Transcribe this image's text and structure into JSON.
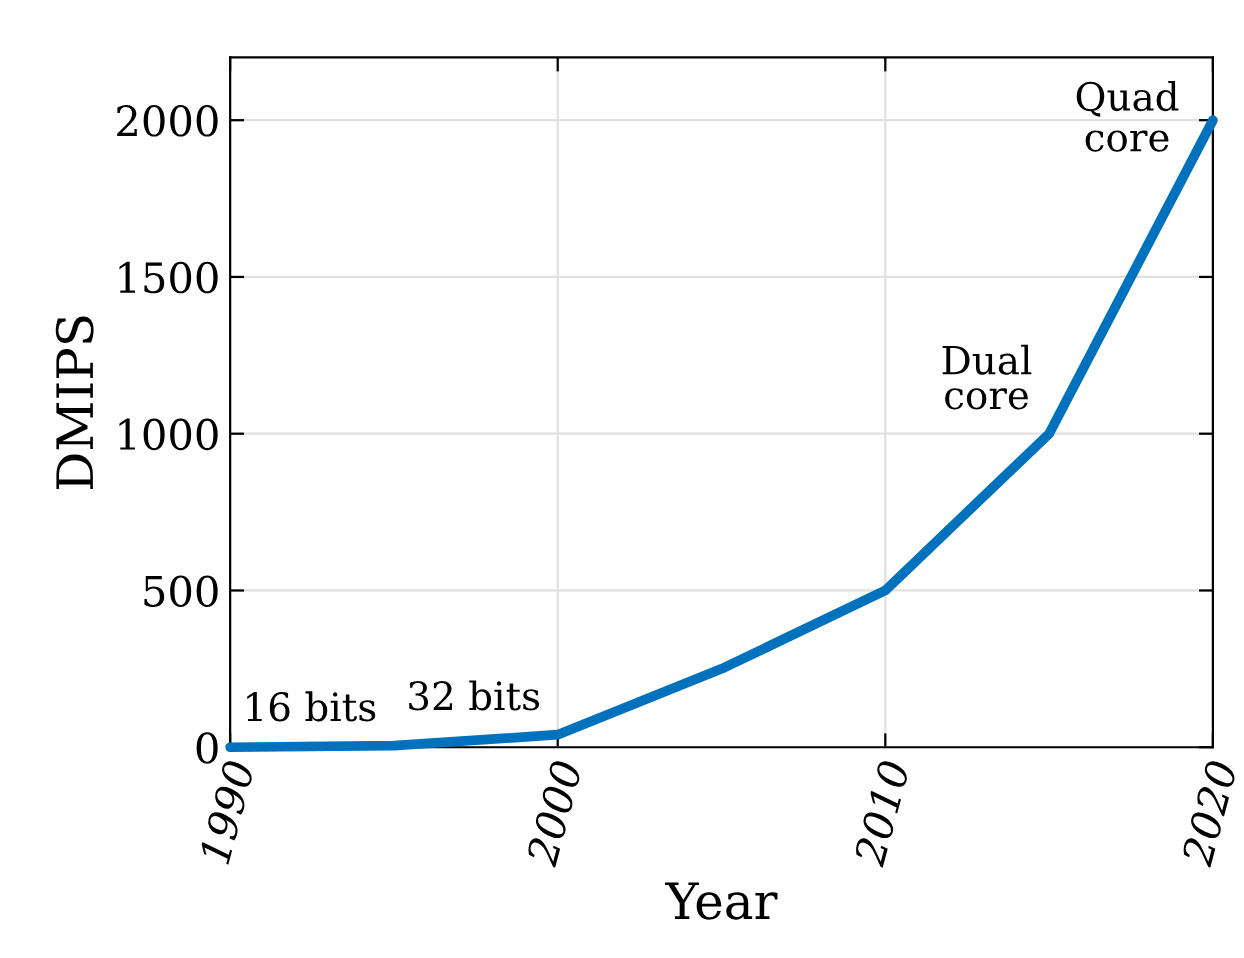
{
  "chart_data": {
    "type": "line",
    "xlabel": "Year",
    "ylabel": "DMIPS",
    "x": [
      1990,
      1995,
      2000,
      2005,
      2010,
      2015,
      2020
    ],
    "series": [
      {
        "color": "#0072bd",
        "values": [
          0,
          5,
          40,
          250,
          500,
          1000,
          2000
        ]
      }
    ],
    "xlim": [
      1990,
      2020
    ],
    "xticks": [
      1990,
      2000,
      2010,
      2020
    ],
    "ylim": [
      0,
      2200
    ],
    "yticks": [
      0,
      500,
      1000,
      1500,
      2000
    ],
    "grid": true,
    "marker": "none",
    "line_style": "solid",
    "annotations": [
      {
        "text": "16 bits",
        "x": 1995,
        "y": 5
      },
      {
        "text": "32 bits",
        "x": 2000,
        "y": 40
      },
      {
        "text": "Dual\ncore",
        "x": 2015,
        "y": 1000
      },
      {
        "text": "Quad\ncore",
        "x": 2020,
        "y": 2000
      }
    ]
  }
}
